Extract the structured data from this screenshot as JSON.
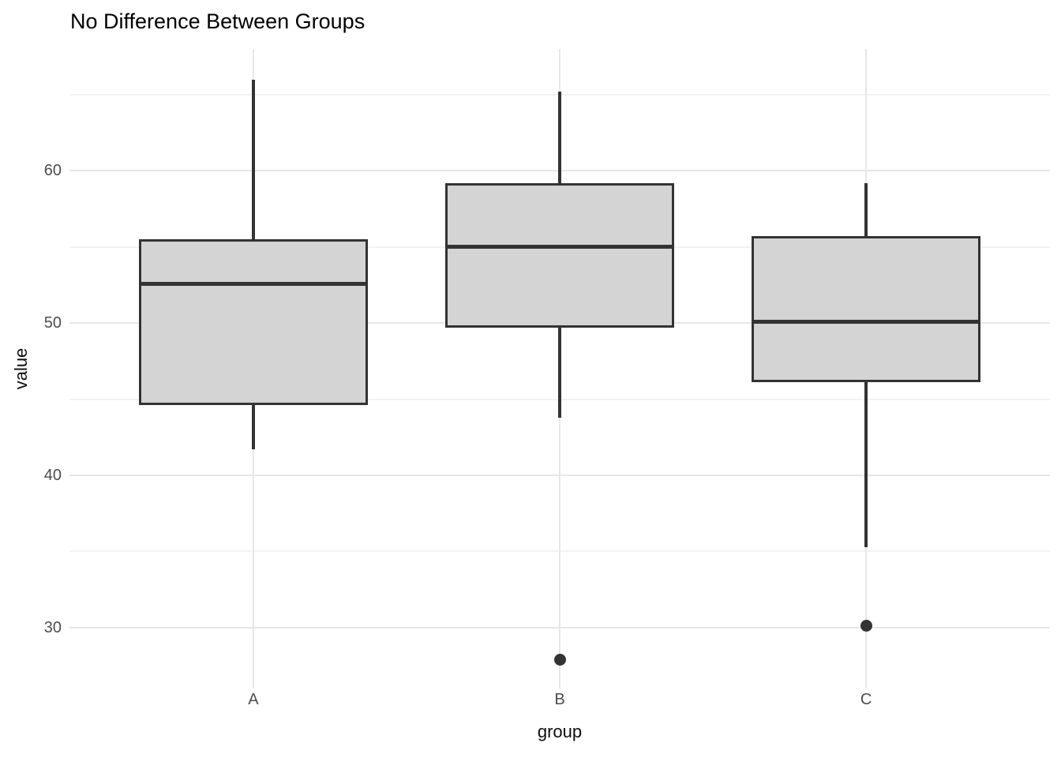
{
  "chart_data": {
    "type": "boxplot",
    "title": "No Difference Between Groups",
    "xlabel": "group",
    "ylabel": "value",
    "categories": [
      "A",
      "B",
      "C"
    ],
    "series": [
      {
        "name": "A",
        "whisker_low": 41.7,
        "q1": 44.6,
        "median": 52.6,
        "q3": 55.5,
        "whisker_high": 66.0,
        "outliers": []
      },
      {
        "name": "B",
        "whisker_low": 43.8,
        "q1": 49.7,
        "median": 55.0,
        "q3": 59.2,
        "whisker_high": 65.2,
        "outliers": [
          27.9
        ]
      },
      {
        "name": "C",
        "whisker_low": 35.3,
        "q1": 46.1,
        "median": 50.1,
        "q3": 55.7,
        "whisker_high": 59.2,
        "outliers": [
          30.1
        ]
      }
    ],
    "y_ticks": [
      30,
      40,
      50,
      60
    ],
    "y_minor_ticks": [
      35,
      45,
      55,
      65
    ],
    "ylim": [
      26,
      68
    ],
    "grid": true,
    "legend": false,
    "colors": {
      "box_fill": "#d4d4d4",
      "box_border": "#333333",
      "median": "#333333",
      "outlier": "#333333",
      "grid_major": "#e7e7e7",
      "grid_minor": "#f2f2f2",
      "tick_label": "#4d4d4d",
      "title": "#000000",
      "background": "#ffffff"
    }
  }
}
